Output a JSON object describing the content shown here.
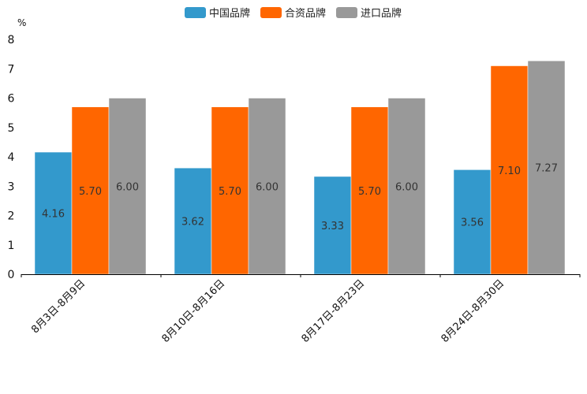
{
  "chart_data": {
    "type": "bar",
    "unit": "%",
    "categories": [
      "8月3日-8月9日",
      "8月10日-8月16日",
      "8月17日-8月23日",
      "8月24日-8月30日"
    ],
    "series": [
      {
        "name": "中国品牌",
        "color": "#3399cc",
        "values": [
          4.16,
          3.62,
          3.33,
          3.56
        ],
        "labels": [
          "4.16",
          "3.62",
          "3.33",
          "3.56"
        ]
      },
      {
        "name": "合资品牌",
        "color": "#ff6600",
        "values": [
          5.7,
          5.7,
          5.7,
          7.1
        ],
        "labels": [
          "5.70",
          "5.70",
          "5.70",
          "7.10"
        ]
      },
      {
        "name": "进口品牌",
        "color": "#999999",
        "values": [
          6.0,
          6.0,
          6.0,
          7.27
        ],
        "labels": [
          "6.00",
          "6.00",
          "6.00",
          "7.27"
        ]
      }
    ],
    "ylim": [
      0,
      8
    ],
    "yticks": [
      0,
      1,
      2,
      3,
      4,
      5,
      6,
      7,
      8
    ],
    "ytick_labels": [
      "0",
      "1",
      "2",
      "3",
      "4",
      "5",
      "6",
      "7",
      "8"
    ],
    "legend_position": "top-center",
    "grid": false
  }
}
